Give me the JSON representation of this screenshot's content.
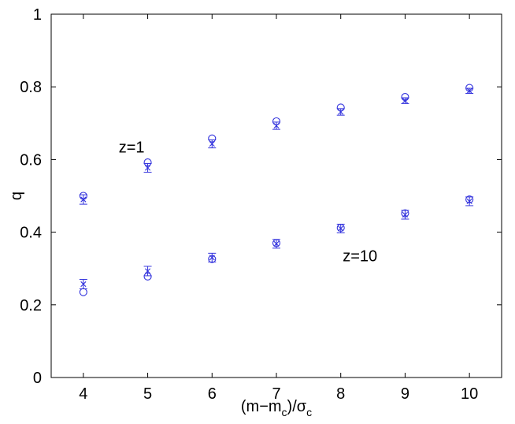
{
  "chart_data": {
    "type": "scatter",
    "xlabel": "(m−m",
    "xlabel_sub1": "c",
    "xlabel_mid": ")/σ",
    "xlabel_sub2": "c",
    "ylabel": "q",
    "xlim": [
      3.5,
      10.5
    ],
    "ylim": [
      0,
      1
    ],
    "xticks": [
      4,
      5,
      6,
      7,
      8,
      9,
      10
    ],
    "yticks": [
      "0",
      "0.2",
      "0.4",
      "0.6",
      "0.8",
      "1"
    ],
    "ytick_values": [
      0,
      0.2,
      0.4,
      0.6,
      0.8,
      1
    ],
    "grid": false,
    "marker_color": "#3333dd",
    "annotations": [
      {
        "text": "z=1",
        "x": 4.75,
        "y": 0.635
      },
      {
        "text": "z=10",
        "x": 8.3,
        "y": 0.335
      }
    ],
    "series": [
      {
        "group": "z=1",
        "marker": "circle",
        "x": [
          4,
          5,
          6,
          7,
          8,
          9,
          10
        ],
        "y": [
          0.5,
          0.592,
          0.658,
          0.705,
          0.743,
          0.772,
          0.797
        ]
      },
      {
        "group": "z=1",
        "marker": "x-errorbar",
        "x": [
          4,
          5,
          6,
          7,
          8,
          9,
          10
        ],
        "y": [
          0.49,
          0.577,
          0.643,
          0.693,
          0.731,
          0.762,
          0.789
        ],
        "err": [
          0.013,
          0.012,
          0.011,
          0.01,
          0.009,
          0.008,
          0.007
        ]
      },
      {
        "group": "z=10",
        "marker": "circle",
        "x": [
          4,
          5,
          6,
          7,
          8,
          9,
          10
        ],
        "y": [
          0.235,
          0.278,
          0.326,
          0.37,
          0.412,
          0.452,
          0.49
        ]
      },
      {
        "group": "z=10",
        "marker": "x-errorbar",
        "x": [
          4,
          5,
          6,
          7,
          8,
          9,
          10
        ],
        "y": [
          0.257,
          0.293,
          0.33,
          0.368,
          0.41,
          0.448,
          0.485
        ],
        "err": [
          0.013,
          0.013,
          0.012,
          0.012,
          0.012,
          0.012,
          0.012
        ]
      }
    ]
  }
}
